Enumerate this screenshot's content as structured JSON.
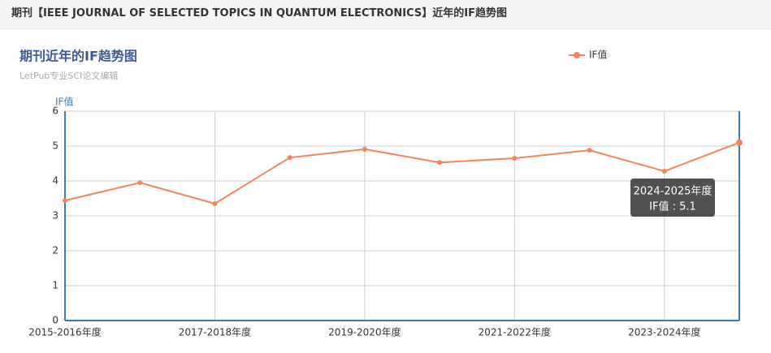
{
  "header": {
    "title": "期刊【IEEE JOURNAL OF SELECTED TOPICS IN QUANTUM ELECTRONICS】近年的IF趋势图"
  },
  "chart_data": {
    "type": "line",
    "title": "期刊近年的IF趋势图",
    "subtitle": "LetPub专业SCI论文编辑",
    "y_label": "IF值",
    "categories": [
      "2015-2016年度",
      null,
      "2017-2018年度",
      null,
      "2019-2020年度",
      null,
      "2021-2022年度",
      null,
      "2023-2024年度",
      null
    ],
    "series": [
      {
        "name": "IF值",
        "color": "#f0845a",
        "values": [
          3.44,
          3.95,
          3.35,
          4.67,
          4.91,
          4.53,
          4.65,
          4.88,
          4.28,
          5.1
        ]
      }
    ],
    "ylim": [
      0,
      6
    ],
    "yticks": [
      0,
      1,
      2,
      3,
      4,
      5,
      6
    ],
    "grid": true,
    "tooltip": {
      "title": "2024-2025年度",
      "text": "IF值 : 5.1"
    }
  }
}
